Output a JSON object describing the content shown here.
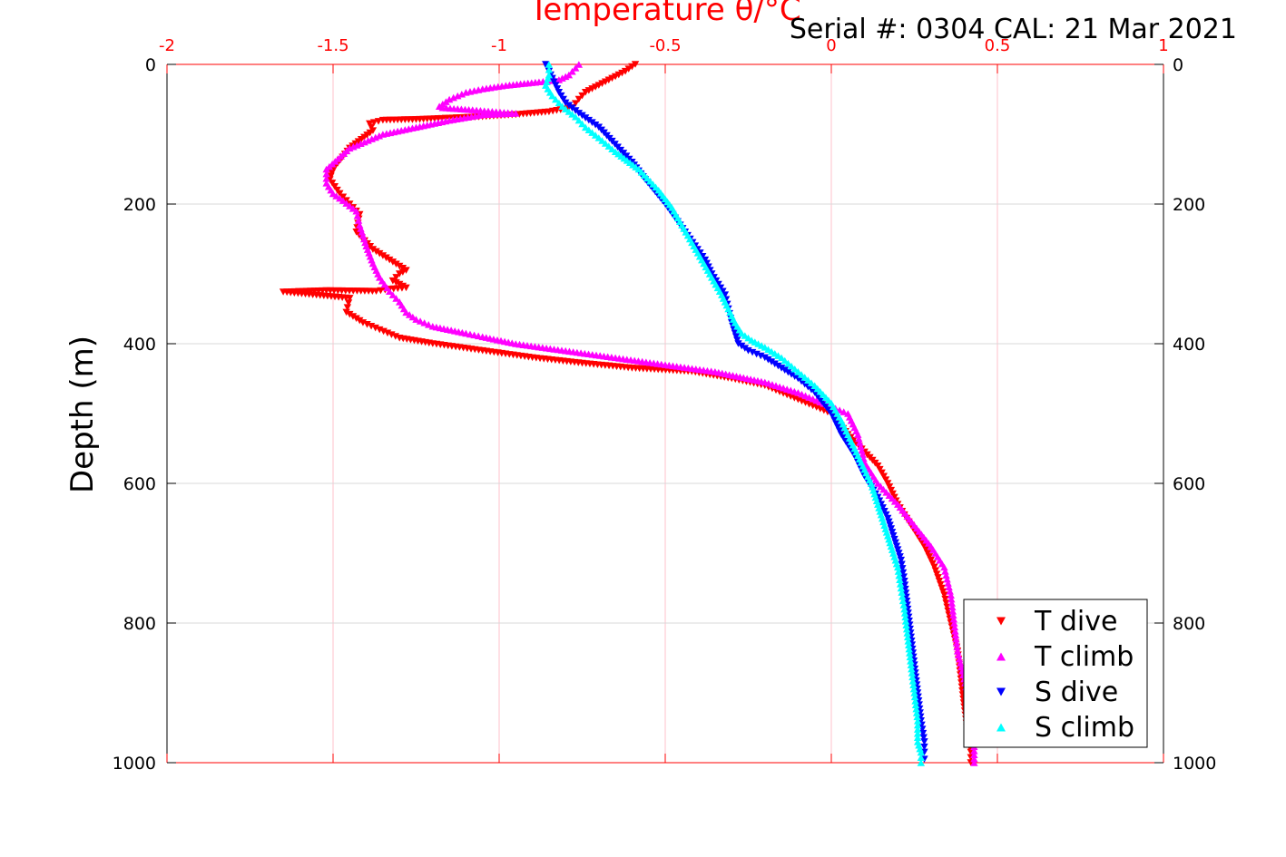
{
  "header": {
    "serial_text": "Serial #: 0304  CAL: 21 Mar 2021"
  },
  "colors": {
    "t_axis": "#ff0000",
    "t_dive": "#ff0000",
    "t_climb": "#ff00ff",
    "s_dive": "#0000ff",
    "s_climb": "#00ffff",
    "grid_x": "#ffc0cb",
    "grid_y": "#d9d9d9"
  },
  "chart_data": {
    "type": "scatter",
    "title": "Temperature θ/°C",
    "xlabel": "Temperature θ/°C",
    "ylabel": "Depth (m)",
    "xlim": [
      -2,
      1
    ],
    "ylim": [
      0,
      1000
    ],
    "y_reversed": true,
    "grid": true,
    "legend_position": "bottom-right",
    "x_ticks": [
      "-2",
      "-1.5",
      "-1",
      "-0.5",
      "0",
      "0.5",
      "1"
    ],
    "y_ticks": [
      "0",
      "200",
      "400",
      "600",
      "800",
      "1000"
    ],
    "series": [
      {
        "name": "T dive",
        "marker": "triangle-down",
        "color": "#ff0000",
        "x": [
          -0.59,
          -0.62,
          -0.68,
          -0.74,
          -0.76,
          -0.78,
          -0.85,
          -0.95,
          -1.05,
          -1.15,
          -1.25,
          -1.35,
          -1.39,
          -1.38,
          -1.45,
          -1.5,
          -1.51,
          -1.48,
          -1.45,
          -1.42,
          -1.43,
          -1.38,
          -1.33,
          -1.28,
          -1.3,
          -1.32,
          -1.28,
          -1.33,
          -1.37,
          -1.52,
          -1.65,
          -1.45,
          -1.46,
          -1.41,
          -1.36,
          -1.3,
          -1.2,
          -1.05,
          -0.9,
          -0.75,
          -0.6,
          -0.42,
          -0.3,
          -0.2,
          -0.1,
          0.0,
          0.05,
          0.1,
          0.14,
          0.17,
          0.2,
          0.24,
          0.28,
          0.31,
          0.34,
          0.36,
          0.38,
          0.39,
          0.4,
          0.41,
          0.42,
          0.42
        ],
        "y": [
          0,
          10,
          25,
          40,
          50,
          62,
          68,
          72,
          75,
          77,
          79,
          80,
          85,
          95,
          120,
          150,
          165,
          185,
          200,
          215,
          240,
          265,
          280,
          295,
          300,
          310,
          320,
          322,
          325,
          324,
          326,
          335,
          355,
          370,
          380,
          392,
          400,
          410,
          420,
          428,
          435,
          440,
          450,
          460,
          480,
          500,
          530,
          555,
          575,
          600,
          630,
          660,
          690,
          720,
          760,
          800,
          840,
          880,
          920,
          955,
          985,
          1000
        ]
      },
      {
        "name": "T climb",
        "marker": "triangle-up",
        "color": "#ff00ff",
        "x": [
          -0.76,
          -0.77,
          -0.79,
          -0.82,
          -0.88,
          -0.98,
          -1.05,
          -1.1,
          -1.15,
          -1.18,
          -1.17,
          -1.08,
          -0.95,
          -1.05,
          -1.15,
          -1.25,
          -1.35,
          -1.45,
          -1.52,
          -1.52,
          -1.5,
          -1.47,
          -1.43,
          -1.42,
          -1.4,
          -1.38,
          -1.36,
          -1.33,
          -1.3,
          -1.28,
          -1.25,
          -1.2,
          -1.1,
          -1.05,
          -0.95,
          -0.8,
          -0.65,
          -0.5,
          -0.35,
          -0.2,
          -0.1,
          0.0,
          0.05,
          0.08,
          0.1,
          0.14,
          0.2,
          0.25,
          0.3,
          0.34,
          0.36,
          0.37,
          0.38,
          0.4,
          0.42,
          0.43,
          0.43
        ],
        "y": [
          0,
          5,
          15,
          22,
          25,
          30,
          35,
          40,
          50,
          60,
          62,
          65,
          70,
          72,
          80,
          90,
          100,
          120,
          150,
          170,
          185,
          195,
          210,
          230,
          260,
          285,
          305,
          325,
          340,
          355,
          365,
          375,
          385,
          390,
          400,
          410,
          420,
          430,
          440,
          455,
          470,
          490,
          500,
          530,
          570,
          600,
          630,
          660,
          690,
          720,
          760,
          800,
          840,
          880,
          920,
          960,
          1000
        ]
      },
      {
        "name": "S dive",
        "marker": "triangle-down",
        "color": "#0000ff",
        "x": [
          -0.86,
          -0.84,
          -0.82,
          -0.8,
          -0.76,
          -0.73,
          -0.7,
          -0.66,
          -0.6,
          -0.56,
          -0.5,
          -0.47,
          -0.44,
          -0.41,
          -0.38,
          -0.36,
          -0.34,
          -0.32,
          -0.31,
          -0.3,
          -0.29,
          -0.28,
          -0.25,
          -0.2,
          -0.15,
          -0.1,
          -0.05,
          0.0,
          0.03,
          0.07,
          0.1,
          0.14,
          0.17,
          0.19,
          0.21,
          0.22,
          0.23,
          0.24,
          0.25,
          0.26,
          0.27,
          0.28,
          0.28,
          0.28
        ],
        "y": [
          0,
          20,
          40,
          55,
          70,
          80,
          90,
          110,
          140,
          165,
          200,
          220,
          240,
          260,
          280,
          300,
          315,
          330,
          350,
          370,
          385,
          400,
          410,
          420,
          435,
          450,
          470,
          500,
          530,
          560,
          590,
          620,
          650,
          680,
          710,
          740,
          780,
          820,
          860,
          900,
          940,
          970,
          985,
          995
        ]
      },
      {
        "name": "S climb",
        "marker": "triangle-up",
        "color": "#00ffff",
        "x": [
          -0.85,
          -0.85,
          -0.86,
          -0.84,
          -0.81,
          -0.77,
          -0.74,
          -0.7,
          -0.65,
          -0.58,
          -0.52,
          -0.48,
          -0.45,
          -0.42,
          -0.39,
          -0.36,
          -0.33,
          -0.31,
          -0.29,
          -0.27,
          -0.24,
          -0.2,
          -0.15,
          -0.1,
          -0.05,
          0.0,
          0.03,
          0.06,
          0.09,
          0.12,
          0.14,
          0.16,
          0.18,
          0.2,
          0.21,
          0.22,
          0.23,
          0.24,
          0.25,
          0.26,
          0.26,
          0.27,
          0.27
        ],
        "y": [
          0,
          15,
          30,
          45,
          60,
          75,
          90,
          105,
          125,
          150,
          180,
          205,
          230,
          255,
          280,
          305,
          330,
          350,
          370,
          385,
          395,
          405,
          420,
          440,
          460,
          485,
          510,
          540,
          570,
          600,
          630,
          660,
          690,
          720,
          750,
          780,
          820,
          860,
          900,
          940,
          970,
          985,
          1000
        ]
      }
    ]
  }
}
